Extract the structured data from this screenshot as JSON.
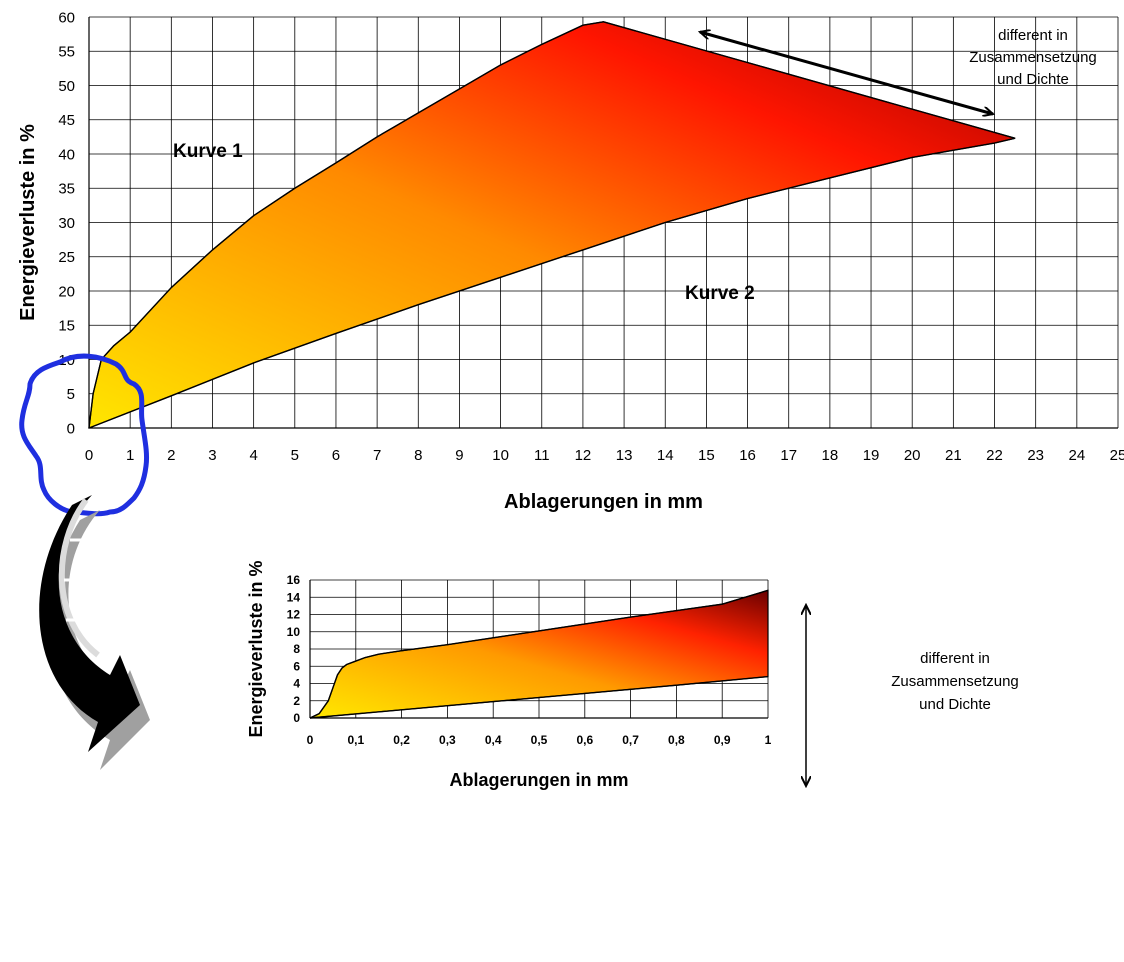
{
  "chart_data": [
    {
      "type": "area",
      "xlabel": "Ablagerungen in mm",
      "ylabel": "Energieverluste in %",
      "xlim": [
        0,
        25
      ],
      "ylim": [
        0,
        60
      ],
      "x_ticks": [
        "0",
        "1",
        "2",
        "3",
        "4",
        "5",
        "6",
        "7",
        "8",
        "9",
        "10",
        "11",
        "12",
        "13",
        "14",
        "15",
        "16",
        "17",
        "18",
        "19",
        "20",
        "21",
        "22",
        "23",
        "24",
        "25"
      ],
      "y_ticks": [
        "0",
        "5",
        "10",
        "15",
        "20",
        "25",
        "30",
        "35",
        "40",
        "45",
        "50",
        "55",
        "60"
      ],
      "grid": true,
      "series": [
        {
          "name": "Kurve 1",
          "x": [
            0,
            0.1,
            0.3,
            0.6,
            1,
            2,
            3,
            4,
            5,
            6,
            7,
            8,
            9,
            10,
            11,
            12,
            12.5,
            22.5
          ],
          "y": [
            0,
            5,
            10,
            12,
            14,
            20.5,
            26,
            31,
            35,
            38.7,
            42.5,
            46,
            49.5,
            53,
            56,
            58.8,
            59.3,
            42.3
          ]
        },
        {
          "name": "Kurve 2",
          "x": [
            0,
            2,
            4,
            6,
            8,
            10,
            12,
            14,
            16,
            18,
            20,
            22,
            22.5
          ],
          "y": [
            0,
            4.7,
            9.5,
            13.8,
            18,
            22,
            26,
            30,
            33.5,
            36.5,
            39.5,
            41.6,
            42.3
          ]
        }
      ],
      "annotations": [
        "Kurve 1",
        "Kurve 2",
        "different in",
        "Zusammensetzung",
        "und Dichte"
      ]
    },
    {
      "type": "area",
      "xlabel": "Ablagerungen in mm",
      "ylabel": "Energieverluste in %",
      "xlim": [
        0,
        1
      ],
      "ylim": [
        0,
        16
      ],
      "x_ticks": [
        "0",
        "0,1",
        "0,2",
        "0,3",
        "0,4",
        "0,5",
        "0,6",
        "0,7",
        "0,8",
        "0,9",
        "1"
      ],
      "y_ticks": [
        "0",
        "2",
        "4",
        "6",
        "8",
        "10",
        "12",
        "14",
        "16"
      ],
      "grid": true,
      "series": [
        {
          "x": [
            0,
            0.02,
            0.04,
            0.05,
            0.06,
            0.07,
            0.08,
            0.1,
            0.12,
            0.15,
            0.2,
            0.3,
            0.5,
            0.7,
            0.9,
            1
          ],
          "y": [
            0,
            0.5,
            2,
            3.5,
            5,
            5.8,
            6.2,
            6.6,
            7,
            7.4,
            7.8,
            8.5,
            10.1,
            11.7,
            13.2,
            14.8
          ]
        },
        {
          "x": [
            0,
            0.2,
            0.4,
            0.6,
            0.8,
            1
          ],
          "y": [
            0,
            0.95,
            1.9,
            2.85,
            3.8,
            4.8
          ]
        }
      ],
      "annotations": [
        "different in",
        "Zusammensetzung",
        "und Dichte"
      ]
    }
  ]
}
